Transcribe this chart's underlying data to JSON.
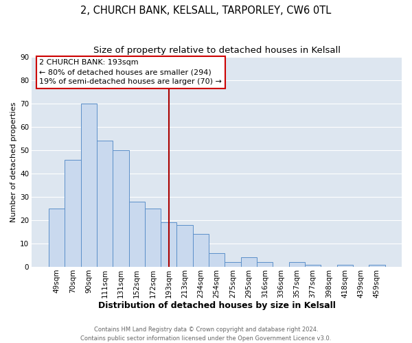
{
  "title": "2, CHURCH BANK, KELSALL, TARPORLEY, CW6 0TL",
  "subtitle": "Size of property relative to detached houses in Kelsall",
  "xlabel": "Distribution of detached houses by size in Kelsall",
  "ylabel": "Number of detached properties",
  "categories": [
    "49sqm",
    "70sqm",
    "90sqm",
    "111sqm",
    "131sqm",
    "152sqm",
    "172sqm",
    "193sqm",
    "213sqm",
    "234sqm",
    "254sqm",
    "275sqm",
    "295sqm",
    "316sqm",
    "336sqm",
    "357sqm",
    "377sqm",
    "398sqm",
    "418sqm",
    "439sqm",
    "459sqm"
  ],
  "values": [
    25,
    46,
    70,
    54,
    50,
    28,
    25,
    19,
    18,
    14,
    6,
    2,
    4,
    2,
    0,
    2,
    1,
    0,
    1,
    0,
    1
  ],
  "bar_color": "#c9d9ee",
  "bar_edge_color": "#5b8fc9",
  "bar_width": 1.0,
  "vline_x_index": 7,
  "vline_color": "#aa0000",
  "annotation_title": "2 CHURCH BANK: 193sqm",
  "annotation_line1": "← 80% of detached houses are smaller (294)",
  "annotation_line2": "19% of semi-detached houses are larger (70) →",
  "annotation_box_color": "#ffffff",
  "annotation_box_edge_color": "#cc0000",
  "ylim": [
    0,
    90
  ],
  "yticks": [
    0,
    10,
    20,
    30,
    40,
    50,
    60,
    70,
    80,
    90
  ],
  "plot_background_color": "#dde6f0",
  "figure_background_color": "#ffffff",
  "grid_color": "#ffffff",
  "footer_line1": "Contains HM Land Registry data © Crown copyright and database right 2024.",
  "footer_line2": "Contains public sector information licensed under the Open Government Licence v3.0.",
  "title_fontsize": 10.5,
  "subtitle_fontsize": 9.5,
  "xlabel_fontsize": 9,
  "ylabel_fontsize": 8,
  "tick_fontsize": 7.5,
  "annotation_fontsize": 8
}
